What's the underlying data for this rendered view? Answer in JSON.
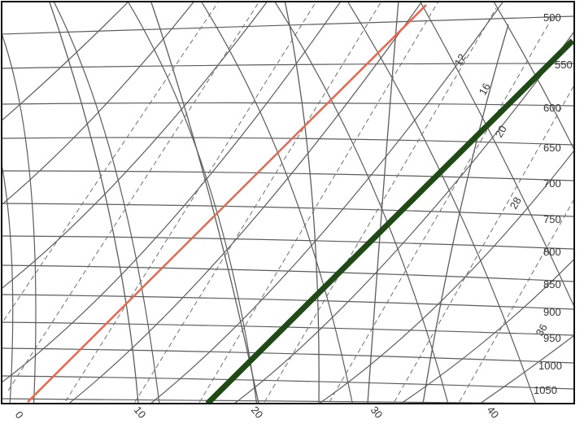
{
  "colors": {
    "background": "#ffffff",
    "grid": "#5c5c5c",
    "dashed": "#6f6f6f",
    "highlight_orange": "#e8684f",
    "highlight_green": "#1f4a16",
    "frame": "#111111"
  },
  "pressure_labels": [
    "500",
    "550",
    "600",
    "650",
    "700",
    "750",
    "800",
    "850",
    "900",
    "950",
    "1000",
    "1050"
  ],
  "temperature_labels": [
    "0",
    "10",
    "20",
    "30",
    "40"
  ],
  "mixing_ratio_labels": [
    "12",
    "16",
    "20",
    "28",
    "36"
  ]
}
